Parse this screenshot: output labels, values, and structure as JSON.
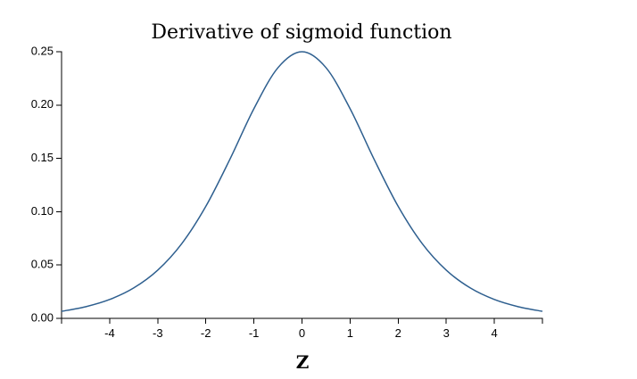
{
  "chart_data": {
    "type": "line",
    "title": "Derivative of sigmoid function",
    "xlabel": "Z",
    "ylabel": "",
    "xlim": [
      -5,
      5
    ],
    "ylim": [
      0,
      0.25
    ],
    "x_ticks": [
      -4,
      -3,
      -2,
      -1,
      0,
      1,
      2,
      3,
      4
    ],
    "x_tick_labels": [
      "-4",
      "-3",
      "-2",
      "-1",
      "0",
      "1",
      "2",
      "3",
      "4"
    ],
    "y_ticks": [
      0,
      0.05,
      0.1,
      0.15,
      0.2,
      0.25
    ],
    "y_tick_labels": [
      "0.00",
      "0.05",
      "0.10",
      "0.15",
      "0.20",
      "0.25"
    ],
    "grid": false,
    "series": [
      {
        "color": "#2e5f8f",
        "x": [
          -5,
          -4.5,
          -4,
          -3.5,
          -3,
          -2.5,
          -2,
          -1.5,
          -1,
          -0.5,
          0,
          0.5,
          1,
          1.5,
          2,
          2.5,
          3,
          3.5,
          4,
          4.5,
          5
        ],
        "y": [
          0.0066,
          0.0109,
          0.0177,
          0.0285,
          0.0452,
          0.0701,
          0.105,
          0.1491,
          0.1966,
          0.235,
          0.25,
          0.235,
          0.1966,
          0.1491,
          0.105,
          0.0701,
          0.0452,
          0.0285,
          0.0177,
          0.0109,
          0.0066
        ]
      }
    ]
  }
}
